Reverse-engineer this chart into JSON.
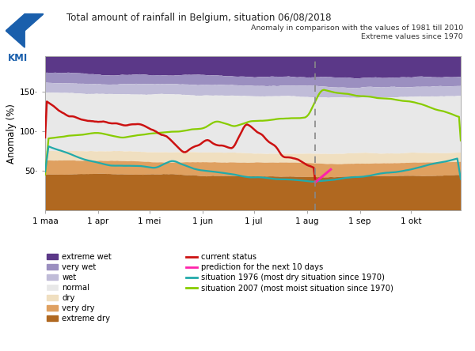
{
  "title": "Total amount of rainfall in Belgium, situation 06/08/2018",
  "subtitle1": "Anomaly in comparison with the values of 1981 till 2010",
  "subtitle2": "Extreme values since 1970",
  "ylabel": "Anomaly (%)",
  "xtick_labels": [
    "1 maa",
    "1 apr",
    "1 mei",
    "1 jun",
    "1 jul",
    "1 aug",
    "1 sep",
    "1 okt"
  ],
  "ytick_labels": [
    "50·",
    "100·",
    "150·"
  ],
  "ytick_values": [
    50,
    100,
    150
  ],
  "colors": {
    "extreme_wet": "#5b3888",
    "very_wet": "#9b8fc0",
    "wet": "#c0bcd8",
    "normal": "#e8e8e8",
    "dry": "#f0dfc0",
    "very_dry": "#dfa060",
    "extreme_dry": "#b06820",
    "current_status": "#cc1111",
    "prediction": "#ff22aa",
    "situation_1976": "#22aaaa",
    "situation_2007": "#88cc00",
    "dashed_line": "#888888",
    "bg": "#ffffff"
  },
  "xlim": [
    0,
    243
  ],
  "ylim": [
    0,
    195
  ],
  "dashed_x": 158,
  "n_points": 244,
  "month_starts": [
    0,
    31,
    61,
    92,
    122,
    153,
    184,
    214
  ],
  "figsize": [
    6.0,
    4.44
  ],
  "dpi": 100
}
